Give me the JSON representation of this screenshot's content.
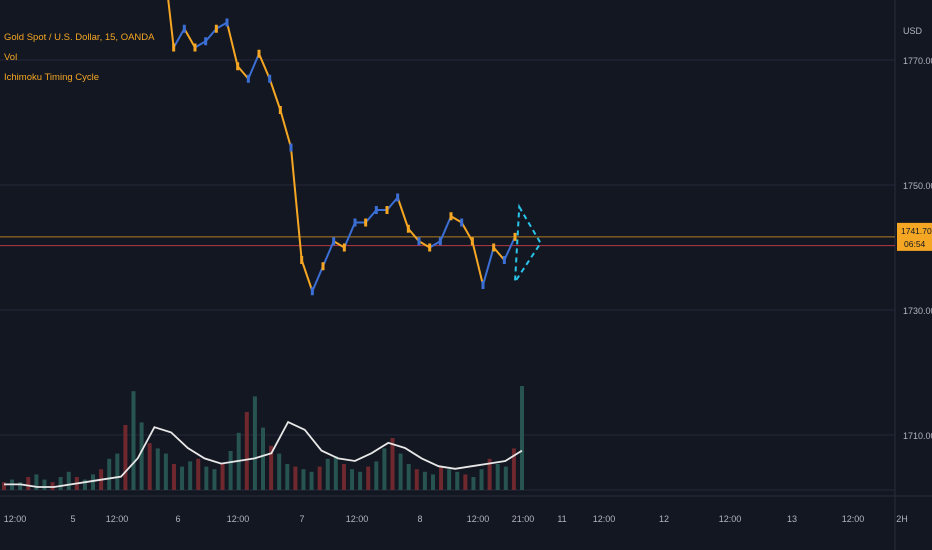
{
  "legend": {
    "symbol": "Gold Spot / U.S. Dollar, 15, OANDA",
    "vol": "Vol",
    "indicator": "Ichimoku Timing Cycle"
  },
  "axis": {
    "currency": "USD",
    "price_ticks": [
      "1770.000",
      "1750.000",
      "1730.000",
      "1710.000"
    ],
    "time_ticks": [
      "12:00",
      "5",
      "12:00",
      "6",
      "12:00",
      "7",
      "12:00",
      "8",
      "12:00",
      "21:00",
      "11",
      "12:00",
      "12",
      "12:00",
      "13",
      "12:00",
      "2H"
    ],
    "price_tag": "1741.700",
    "countdown": "06:54"
  },
  "colors": {
    "background": "#131722",
    "grid": "#242a39",
    "candles_up": "#3b6fd6",
    "candles_down": "#f5a623",
    "price_line": "#f5a623",
    "level_line": "#b23a48",
    "triangle": "#29c4e8",
    "volume_up": "#2a5b55",
    "volume_down": "#7a2a30",
    "volume_ma": "#e8e8e8",
    "tag_bg": "#f5a623"
  },
  "chart_data": {
    "type": "line",
    "title": "Gold Spot / U.S. Dollar, 15, OANDA",
    "price_range": [
      1702,
      1787
    ],
    "grid": true,
    "last_price": 1741.7,
    "level_line": 1740.3,
    "series": [
      {
        "name": "",
        "x": [
          0,
          5,
          10,
          15,
          20,
          25,
          30,
          35,
          40,
          45,
          50,
          55,
          60,
          65,
          70,
          75,
          80,
          85,
          90,
          95,
          100,
          105,
          110,
          115,
          120,
          125,
          130,
          135,
          140,
          145,
          150,
          155,
          160,
          165
        ],
        "values": [
          1787,
          1772,
          1775,
          1772,
          1773,
          1775,
          1776,
          1769,
          1767,
          1771,
          1767,
          1762,
          1756,
          1738,
          1733,
          1737,
          1741,
          1740,
          1744,
          1744,
          1746,
          1746,
          1748,
          1743,
          1741,
          1740,
          1741,
          1745,
          1744,
          1741,
          1734,
          1740,
          1738,
          1741.7
        ]
      }
    ],
    "triangle": {
      "points": [
        [
          167,
          1746.5
        ],
        [
          177,
          1740.7
        ],
        [
          165,
          1734.5
        ]
      ]
    },
    "volume": {
      "values": [
        3,
        4,
        3,
        5,
        6,
        4,
        3,
        5,
        7,
        5,
        4,
        6,
        8,
        12,
        14,
        25,
        38,
        26,
        18,
        16,
        14,
        10,
        9,
        11,
        12,
        9,
        8,
        10,
        15,
        22,
        30,
        36,
        24,
        17,
        14,
        10,
        9,
        8,
        7,
        9,
        12,
        13,
        10,
        8,
        7,
        9,
        11,
        16,
        20,
        14,
        10,
        8,
        7,
        6,
        9,
        8,
        7,
        6,
        5,
        8,
        12,
        10,
        9,
        16,
        40
      ],
      "ma": [
        6,
        6,
        5,
        5,
        6,
        7,
        8,
        9,
        16,
        28,
        26,
        20,
        16,
        14,
        15,
        16,
        18,
        30,
        27,
        19,
        16,
        15,
        18,
        22,
        20,
        16,
        13,
        12,
        13,
        14,
        15,
        19
      ]
    }
  }
}
